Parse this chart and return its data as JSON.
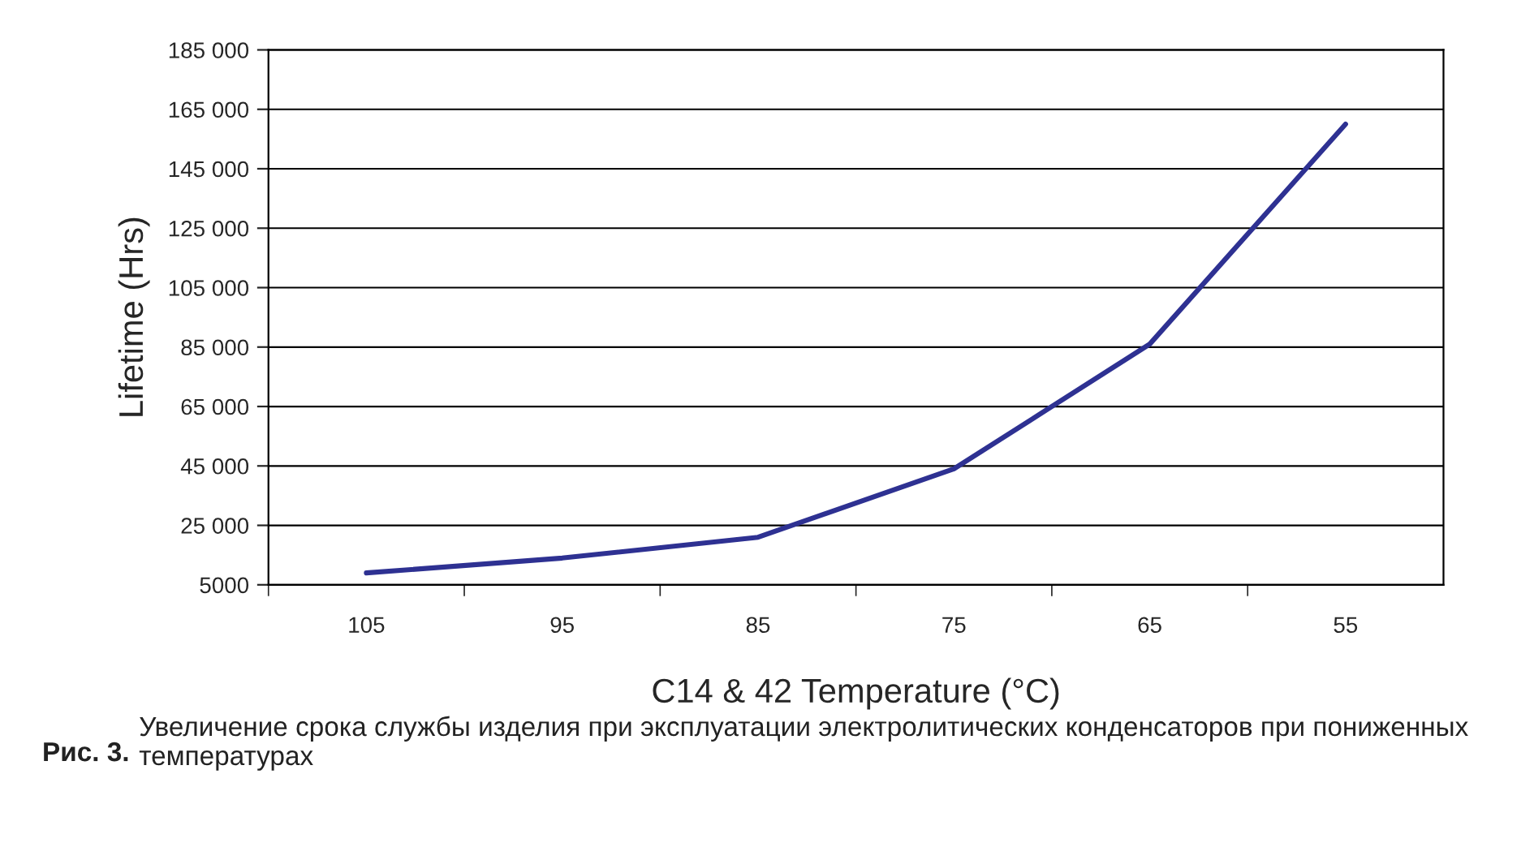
{
  "chart_data": {
    "type": "line",
    "xlabel": "C14 & 42 Temperature (°C)",
    "ylabel": "Lifetime (Hrs)",
    "categories": [
      "105",
      "95",
      "85",
      "75",
      "65",
      "55"
    ],
    "series": [
      {
        "color": "#2e3192",
        "values": [
          9000,
          14000,
          21000,
          44000,
          86000,
          160000
        ]
      }
    ],
    "ylim": [
      5000,
      185000
    ],
    "yticks": [
      {
        "value": 5000,
        "label": "5000"
      },
      {
        "value": 25000,
        "label": "25 000"
      },
      {
        "value": 45000,
        "label": "45 000"
      },
      {
        "value": 65000,
        "label": "65 000"
      },
      {
        "value": 85000,
        "label": "85 000"
      },
      {
        "value": 105000,
        "label": "105 000"
      },
      {
        "value": 125000,
        "label": "125 000"
      },
      {
        "value": 145000,
        "label": "145 000"
      },
      {
        "value": 165000,
        "label": "165 000"
      },
      {
        "value": 185000,
        "label": "185 000"
      }
    ],
    "grid": "y",
    "line_style": "solid",
    "marker": "none",
    "annotations": [
      "Рис. 3.",
      "Увеличение срока службы изделия при эксплуатации электролитических конденсаторов при пониженных температурах"
    ]
  }
}
